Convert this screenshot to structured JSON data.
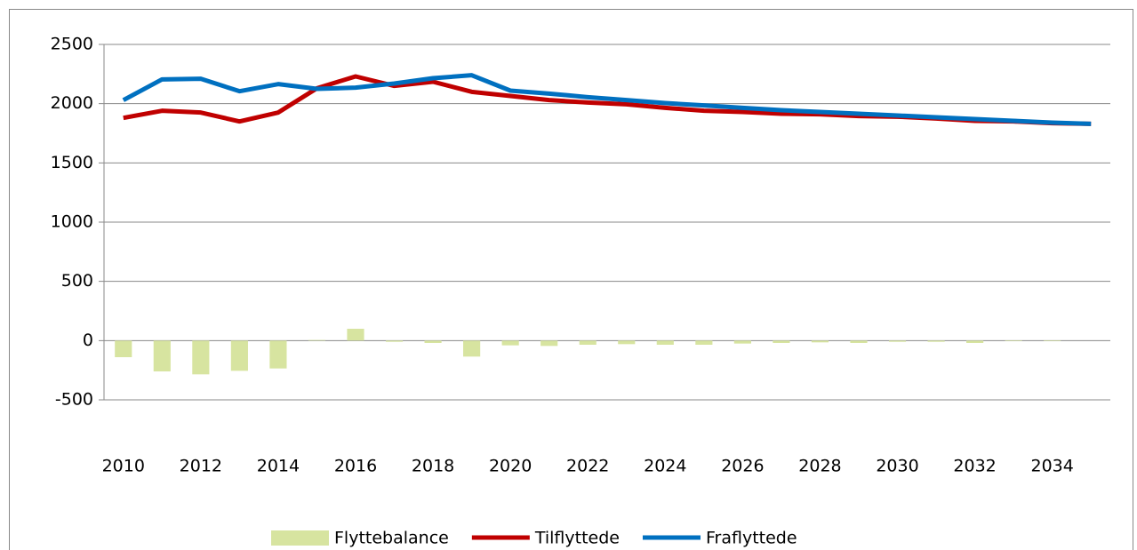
{
  "chart_data": {
    "type": "bar-line",
    "categories": [
      "2010",
      null,
      "2012",
      null,
      "2014",
      null,
      "2016",
      null,
      "2018",
      null,
      "2020",
      null,
      "2022",
      null,
      "2024",
      null,
      "2026",
      null,
      "2028",
      null,
      "2030",
      null,
      "2032",
      null,
      "2034",
      null
    ],
    "series": [
      {
        "name": "Flyttebalance",
        "type": "bar",
        "color": "#d7e4a0",
        "values": [
          -140,
          -260,
          -285,
          -255,
          -235,
          5,
          100,
          -10,
          -20,
          -135,
          -40,
          -45,
          -35,
          -30,
          -35,
          -35,
          -25,
          -20,
          -15,
          -20,
          -10,
          -10,
          -20,
          -5,
          -5,
          0
        ]
      },
      {
        "name": "Tilflyttede",
        "type": "line",
        "color": "#c00000",
        "values": [
          1880,
          1940,
          1925,
          1850,
          1925,
          2130,
          2230,
          2150,
          2185,
          2100,
          2065,
          2030,
          2010,
          1995,
          1965,
          1940,
          1930,
          1915,
          1910,
          1895,
          1890,
          1875,
          1855,
          1850,
          1835,
          1830
        ]
      },
      {
        "name": "Fraflyttede",
        "type": "line",
        "color": "#0070c0",
        "values": [
          2030,
          2205,
          2210,
          2105,
          2165,
          2125,
          2135,
          2170,
          2215,
          2240,
          2110,
          2085,
          2055,
          2030,
          2005,
          1985,
          1965,
          1945,
          1930,
          1915,
          1900,
          1885,
          1870,
          1855,
          1840,
          1830
        ]
      }
    ],
    "ylim": [
      -500,
      2500
    ],
    "yticks": [
      -500,
      0,
      500,
      1000,
      1500,
      2000,
      2500
    ],
    "grid": true,
    "legend": "bottom"
  }
}
